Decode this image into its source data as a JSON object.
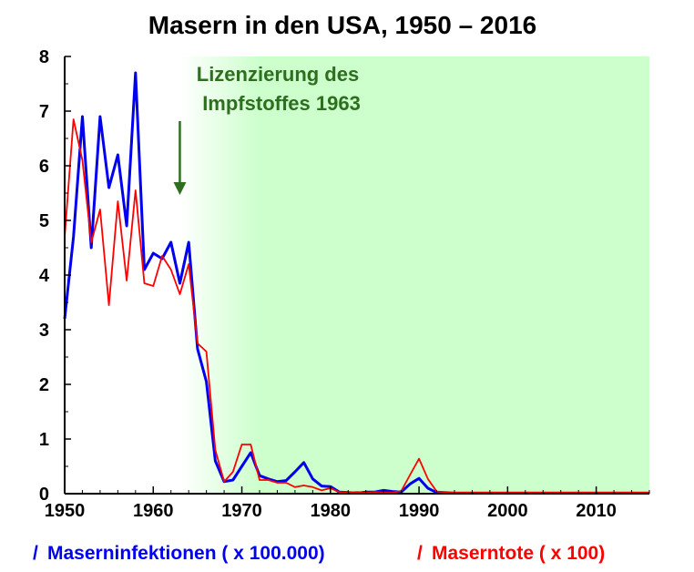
{
  "chart_data": {
    "type": "line",
    "title": "Masern in den  USA, 1950 – 2016",
    "xlim": [
      1950,
      2016
    ],
    "ylim": [
      0,
      8
    ],
    "x_ticks": [
      "1950",
      "1960",
      "1970",
      "1980",
      "1990",
      "2000",
      "2010"
    ],
    "y_ticks": [
      "0",
      "1",
      "2",
      "3",
      "4",
      "5",
      "6",
      "7",
      "8"
    ],
    "shaded_region": {
      "from": 1963,
      "to": 2016,
      "color": "#ccffcc"
    },
    "annotation": {
      "line1": "Lizenzierung des",
      "line2": "Impfstoffes 1963",
      "x": 1963,
      "color": "#2e6e1f"
    },
    "legend_marker": "/",
    "series": [
      {
        "name": "Maserninfektionen ( x 100.000)",
        "color": "#0000ee",
        "points": [
          [
            1950,
            3.2
          ],
          [
            1951,
            4.7
          ],
          [
            1952,
            6.9
          ],
          [
            1953,
            4.5
          ],
          [
            1954,
            6.9
          ],
          [
            1955,
            5.6
          ],
          [
            1956,
            6.2
          ],
          [
            1957,
            4.9
          ],
          [
            1958,
            7.7
          ],
          [
            1959,
            4.1
          ],
          [
            1960,
            4.4
          ],
          [
            1961,
            4.3
          ],
          [
            1962,
            4.6
          ],
          [
            1963,
            3.85
          ],
          [
            1964,
            4.6
          ],
          [
            1965,
            2.65
          ],
          [
            1966,
            2.05
          ],
          [
            1967,
            0.6
          ],
          [
            1968,
            0.22
          ],
          [
            1969,
            0.25
          ],
          [
            1970,
            0.5
          ],
          [
            1971,
            0.75
          ],
          [
            1972,
            0.33
          ],
          [
            1973,
            0.27
          ],
          [
            1974,
            0.22
          ],
          [
            1975,
            0.24
          ],
          [
            1976,
            0.4
          ],
          [
            1977,
            0.57
          ],
          [
            1978,
            0.27
          ],
          [
            1979,
            0.14
          ],
          [
            1980,
            0.13
          ],
          [
            1981,
            0.03
          ],
          [
            1982,
            0.02
          ],
          [
            1983,
            0.01
          ],
          [
            1984,
            0.03
          ],
          [
            1985,
            0.03
          ],
          [
            1986,
            0.06
          ],
          [
            1987,
            0.04
          ],
          [
            1988,
            0.03
          ],
          [
            1989,
            0.18
          ],
          [
            1990,
            0.28
          ],
          [
            1991,
            0.1
          ],
          [
            1992,
            0.02
          ],
          [
            1993,
            0.01
          ],
          [
            1994,
            0.01
          ],
          [
            1995,
            0.01
          ],
          [
            1996,
            0.01
          ],
          [
            2000,
            0.01
          ],
          [
            2005,
            0.01
          ],
          [
            2010,
            0.01
          ],
          [
            2016,
            0.01
          ]
        ]
      },
      {
        "name": "Maserntote ( x 100)",
        "color": "#ff0000",
        "points": [
          [
            1950,
            4.7
          ],
          [
            1951,
            6.85
          ],
          [
            1952,
            6.1
          ],
          [
            1953,
            4.6
          ],
          [
            1954,
            5.2
          ],
          [
            1955,
            3.45
          ],
          [
            1956,
            5.35
          ],
          [
            1957,
            3.9
          ],
          [
            1958,
            5.55
          ],
          [
            1959,
            3.85
          ],
          [
            1960,
            3.8
          ],
          [
            1961,
            4.35
          ],
          [
            1962,
            4.1
          ],
          [
            1963,
            3.65
          ],
          [
            1964,
            4.2
          ],
          [
            1965,
            2.75
          ],
          [
            1966,
            2.6
          ],
          [
            1967,
            0.8
          ],
          [
            1968,
            0.22
          ],
          [
            1969,
            0.4
          ],
          [
            1970,
            0.9
          ],
          [
            1971,
            0.9
          ],
          [
            1972,
            0.25
          ],
          [
            1973,
            0.25
          ],
          [
            1974,
            0.2
          ],
          [
            1975,
            0.2
          ],
          [
            1976,
            0.12
          ],
          [
            1977,
            0.15
          ],
          [
            1978,
            0.12
          ],
          [
            1979,
            0.06
          ],
          [
            1980,
            0.1
          ],
          [
            1981,
            0.03
          ],
          [
            1982,
            0.02
          ],
          [
            1983,
            0.03
          ],
          [
            1984,
            0.02
          ],
          [
            1985,
            0.03
          ],
          [
            1986,
            0.02
          ],
          [
            1987,
            0.02
          ],
          [
            1988,
            0.05
          ],
          [
            1989,
            0.35
          ],
          [
            1990,
            0.64
          ],
          [
            1991,
            0.27
          ],
          [
            1992,
            0.04
          ],
          [
            1993,
            0.03
          ],
          [
            1994,
            0.02
          ],
          [
            1995,
            0.02
          ],
          [
            1996,
            0.02
          ],
          [
            2000,
            0.02
          ],
          [
            2005,
            0.02
          ],
          [
            2010,
            0.02
          ],
          [
            2016,
            0.02
          ]
        ]
      }
    ]
  }
}
